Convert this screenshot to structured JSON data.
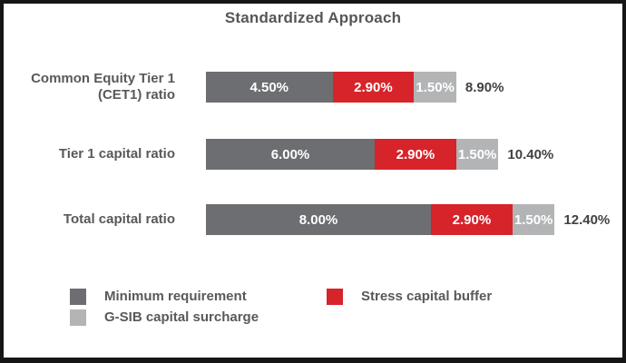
{
  "title": "Standardized Approach",
  "colors": {
    "minimum_requirement": "#6d6e71",
    "stress_capital_buffer": "#d7232a",
    "gsib_capital_surcharge": "#b2b4b6",
    "heading_text": "#555658",
    "label_text": "#58595b",
    "total_text": "#414042",
    "frame_border": "#161616"
  },
  "chart_data": {
    "type": "bar",
    "orientation": "horizontal",
    "stacked": true,
    "title": "Standardized Approach",
    "categories": [
      "Common Equity Tier 1 (CET1) ratio",
      "Tier 1 capital ratio",
      "Total capital ratio"
    ],
    "series": [
      {
        "name": "Minimum requirement",
        "color": "#6d6e71",
        "values": [
          4.5,
          6.0,
          8.0
        ]
      },
      {
        "name": "Stress capital buffer",
        "color": "#d7232a",
        "values": [
          2.9,
          2.9,
          2.9
        ]
      },
      {
        "name": "G-SIB capital surcharge",
        "color": "#b2b4b6",
        "values": [
          1.5,
          1.5,
          1.5
        ]
      }
    ],
    "segment_labels": [
      [
        "4.50%",
        "2.90%",
        "1.50%"
      ],
      [
        "6.00%",
        "2.90%",
        "1.50%"
      ],
      [
        "8.00%",
        "2.90%",
        "1.50%"
      ]
    ],
    "totals": [
      8.9,
      10.4,
      12.4
    ],
    "total_labels": [
      "8.90%",
      "10.40%",
      "12.40%"
    ],
    "xlim": [
      0,
      14
    ],
    "grid": false,
    "legend_position": "bottom",
    "value_format": "0.00%"
  }
}
